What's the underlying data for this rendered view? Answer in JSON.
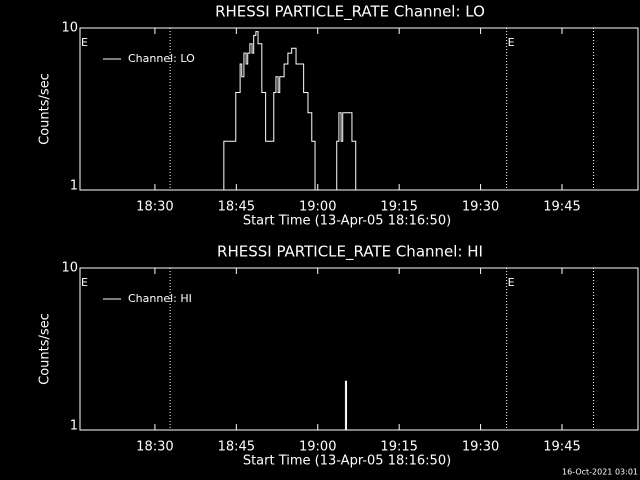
{
  "chart_data": [
    {
      "type": "line",
      "title": "RHESSI PARTICLE_RATE Channel: LO",
      "xlabel": "Start Time (13-Apr-05 18:16:50)",
      "ylabel": "Counts/sec",
      "log_y": true,
      "xlim": [
        1096.2,
        1199.0
      ],
      "ylim": [
        1,
        10
      ],
      "xticks": [
        {
          "value": 1110,
          "label": "18:30"
        },
        {
          "value": 1125,
          "label": "18:45"
        },
        {
          "value": 1140,
          "label": "19:00"
        },
        {
          "value": 1155,
          "label": "19:15"
        },
        {
          "value": 1170,
          "label": "19:30"
        },
        {
          "value": 1185,
          "label": "19:45"
        }
      ],
      "yticks": [
        1,
        10
      ],
      "vlines": [
        1112.8,
        1174.8,
        1190.8
      ],
      "annotations": [
        "E",
        "E"
      ],
      "legend": "upper left",
      "series": [
        {
          "name": "Channel: LO",
          "color": "#ffffff",
          "x": [
            1096.6,
            1122.3,
            1122.7,
            1124.5,
            1124.9,
            1125.7,
            1126.0,
            1126.4,
            1126.8,
            1127.1,
            1127.5,
            1127.9,
            1128.2,
            1128.6,
            1129.0,
            1129.7,
            1130.4,
            1131.2,
            1131.9,
            1132.3,
            1132.7,
            1133.0,
            1133.8,
            1134.5,
            1135.2,
            1136.0,
            1136.7,
            1137.4,
            1138.2,
            1138.9,
            1139.5,
            1143.3,
            1143.5,
            1143.9,
            1144.3,
            1144.6,
            1145.9,
            1146.3,
            1147.0,
            1199.0
          ],
          "values": [
            1,
            1,
            2,
            2,
            4,
            6,
            5,
            7,
            6,
            7,
            8,
            7,
            9,
            9.5,
            8,
            4,
            2,
            2,
            4,
            5,
            4,
            5,
            6,
            7,
            7.5,
            6,
            6,
            4,
            3,
            2,
            1,
            1,
            2,
            3,
            2,
            3,
            3,
            2,
            1,
            1
          ]
        }
      ]
    },
    {
      "type": "line",
      "title": "RHESSI PARTICLE_RATE Channel: HI",
      "xlabel": "Start Time (13-Apr-05 18:16:50)",
      "ylabel": "Counts/sec",
      "log_y": true,
      "xlim": [
        1096.2,
        1199.0
      ],
      "ylim": [
        1,
        10
      ],
      "xticks": [
        {
          "value": 1110,
          "label": "18:30"
        },
        {
          "value": 1125,
          "label": "18:45"
        },
        {
          "value": 1140,
          "label": "19:00"
        },
        {
          "value": 1155,
          "label": "19:15"
        },
        {
          "value": 1170,
          "label": "19:30"
        },
        {
          "value": 1185,
          "label": "19:45"
        }
      ],
      "yticks": [
        1,
        10
      ],
      "vlines": [
        1112.8,
        1174.8,
        1190.8
      ],
      "annotations": [
        "E",
        "E"
      ],
      "legend": "upper left",
      "series": [
        {
          "name": "Channel: HI",
          "color": "#ffffff",
          "x": [
            1096.6,
            1144.9,
            1145.1,
            1145.3,
            1199.0
          ],
          "values": [
            1,
            1,
            2,
            1,
            1
          ]
        }
      ]
    }
  ],
  "footer": "16-Oct-2021 03:01"
}
